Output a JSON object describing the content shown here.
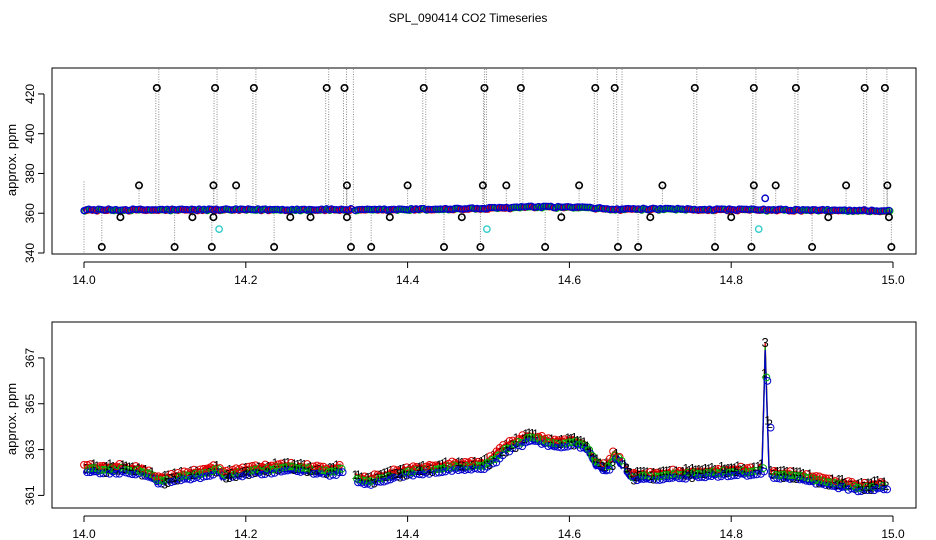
{
  "chart_data": {
    "title": "SPL_090414  CO2 Timeseries",
    "colors": {
      "black": "#000000",
      "gray": "#8c8c8c",
      "blue": "#0000cc",
      "cyan": "#33cccc",
      "green": "#00b000",
      "red": "#dd0000"
    },
    "panels": [
      {
        "type": "scatter",
        "ylabel": "approx. ppm",
        "xlim": [
          14.0,
          15.0
        ],
        "ylim": [
          340,
          425
        ],
        "x_ticks": [
          "14.0",
          "14.2",
          "14.4",
          "14.6",
          "14.8",
          "15.0"
        ],
        "y_ticks": [
          "340",
          "360",
          "380",
          "400",
          "420"
        ],
        "baseline_segments": [
          {
            "x0": 14.0,
            "x1": 14.33,
            "y0": 361.7,
            "y1": 361.9
          },
          {
            "x0": 14.335,
            "x1": 14.495,
            "y0": 361.6,
            "y1": 362.4
          },
          {
            "x0": 14.495,
            "x1": 14.55,
            "y0": 362.4,
            "y1": 363.2
          },
          {
            "x0": 14.55,
            "x1": 14.61,
            "y0": 363.2,
            "y1": 363.0
          },
          {
            "x0": 14.61,
            "x1": 14.665,
            "y0": 363.0,
            "y1": 361.8
          },
          {
            "x0": 14.667,
            "x1": 14.995,
            "y0": 362.2,
            "y1": 361.3
          }
        ],
        "outliers_high": [
          14.09,
          14.162,
          14.21,
          14.3,
          14.322,
          14.42,
          14.495,
          14.54,
          14.632,
          14.656,
          14.755,
          14.828,
          14.88,
          14.965,
          14.99
        ],
        "outliers_low": [
          14.022,
          14.112,
          14.158,
          14.235,
          14.33,
          14.355,
          14.445,
          14.49,
          14.57,
          14.66,
          14.685,
          14.78,
          14.825,
          14.9,
          14.998
        ],
        "outliers_mid_high": [
          {
            "x": 14.068,
            "y": 374
          },
          {
            "x": 14.16,
            "y": 374
          },
          {
            "x": 14.188,
            "y": 374
          },
          {
            "x": 14.325,
            "y": 374
          },
          {
            "x": 14.4,
            "y": 374
          },
          {
            "x": 14.493,
            "y": 374
          },
          {
            "x": 14.522,
            "y": 374
          },
          {
            "x": 14.612,
            "y": 374
          },
          {
            "x": 14.715,
            "y": 374
          },
          {
            "x": 14.828,
            "y": 374
          },
          {
            "x": 14.855,
            "y": 374
          },
          {
            "x": 14.942,
            "y": 374
          },
          {
            "x": 14.993,
            "y": 374
          }
        ],
        "outliers_mid_low": [
          {
            "x": 14.045,
            "y": 358
          },
          {
            "x": 14.134,
            "y": 358
          },
          {
            "x": 14.16,
            "y": 358
          },
          {
            "x": 14.255,
            "y": 358
          },
          {
            "x": 14.28,
            "y": 358
          },
          {
            "x": 14.325,
            "y": 358
          },
          {
            "x": 14.378,
            "y": 358
          },
          {
            "x": 14.467,
            "y": 358
          },
          {
            "x": 14.59,
            "y": 358
          },
          {
            "x": 14.7,
            "y": 358
          },
          {
            "x": 14.8,
            "y": 358
          },
          {
            "x": 14.92,
            "y": 358
          },
          {
            "x": 14.995,
            "y": 358
          }
        ],
        "cyan_points": [
          {
            "x": 14.167,
            "y": 352
          },
          {
            "x": 14.498,
            "y": 352
          },
          {
            "x": 14.834,
            "y": 352
          }
        ],
        "blue_special": [
          {
            "x": 14.842,
            "y": 367.5
          }
        ]
      },
      {
        "type": "line",
        "ylabel": "approx. ppm",
        "xlim": [
          14.0,
          15.0
        ],
        "ylim": [
          360.8,
          368.0
        ],
        "x_ticks": [
          "14.0",
          "14.2",
          "14.4",
          "14.6",
          "14.8",
          "15.0"
        ],
        "y_ticks": [
          "361",
          "363",
          "365",
          "367"
        ],
        "peak_label": "3",
        "series_labels": [
          "1",
          "2",
          "3"
        ],
        "gaps": [
          [
            14.165,
            14.168
          ],
          [
            14.318,
            14.335
          ],
          [
            14.495,
            14.498
          ],
          [
            14.665,
            14.668
          ],
          [
            14.829,
            14.833
          ]
        ],
        "profile": [
          {
            "x": 14.0,
            "y": 362.0
          },
          {
            "x": 14.05,
            "y": 362.0
          },
          {
            "x": 14.075,
            "y": 361.9
          },
          {
            "x": 14.09,
            "y": 361.5
          },
          {
            "x": 14.11,
            "y": 361.6
          },
          {
            "x": 14.14,
            "y": 361.8
          },
          {
            "x": 14.165,
            "y": 362.0
          },
          {
            "x": 14.17,
            "y": 361.7
          },
          {
            "x": 14.2,
            "y": 361.9
          },
          {
            "x": 14.25,
            "y": 362.1
          },
          {
            "x": 14.3,
            "y": 361.9
          },
          {
            "x": 14.318,
            "y": 362.0
          },
          {
            "x": 14.335,
            "y": 361.6
          },
          {
            "x": 14.35,
            "y": 361.5
          },
          {
            "x": 14.4,
            "y": 361.9
          },
          {
            "x": 14.45,
            "y": 362.1
          },
          {
            "x": 14.495,
            "y": 362.2
          },
          {
            "x": 14.5,
            "y": 362.3
          },
          {
            "x": 14.52,
            "y": 362.9
          },
          {
            "x": 14.55,
            "y": 363.4
          },
          {
            "x": 14.58,
            "y": 363.1
          },
          {
            "x": 14.605,
            "y": 363.2
          },
          {
            "x": 14.62,
            "y": 363.0
          },
          {
            "x": 14.63,
            "y": 362.3
          },
          {
            "x": 14.645,
            "y": 362.0
          },
          {
            "x": 14.655,
            "y": 362.6
          },
          {
            "x": 14.665,
            "y": 362.2
          },
          {
            "x": 14.668,
            "y": 362.0
          },
          {
            "x": 14.675,
            "y": 361.7
          },
          {
            "x": 14.7,
            "y": 361.7
          },
          {
            "x": 14.75,
            "y": 361.8
          },
          {
            "x": 14.8,
            "y": 361.9
          },
          {
            "x": 14.829,
            "y": 361.9
          },
          {
            "x": 14.833,
            "y": 362.0
          },
          {
            "x": 14.838,
            "y": 362.0
          },
          {
            "x": 14.842,
            "y": 367.3
          },
          {
            "x": 14.847,
            "y": 361.8
          },
          {
            "x": 14.88,
            "y": 361.7
          },
          {
            "x": 14.92,
            "y": 361.4
          },
          {
            "x": 14.96,
            "y": 361.2
          },
          {
            "x": 14.99,
            "y": 361.3
          }
        ]
      }
    ]
  }
}
